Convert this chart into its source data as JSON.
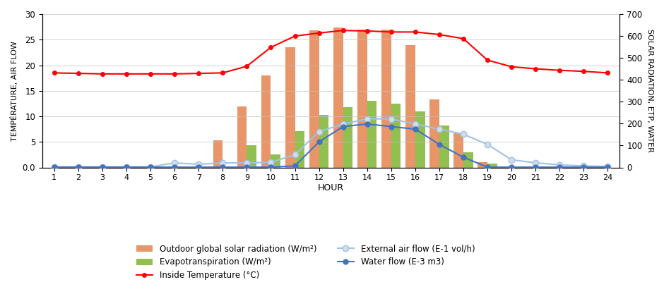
{
  "hours": [
    1,
    2,
    3,
    4,
    5,
    6,
    7,
    8,
    9,
    10,
    11,
    12,
    13,
    14,
    15,
    16,
    17,
    18,
    19,
    20,
    21,
    22,
    23,
    24
  ],
  "solar_radiation": [
    0,
    0,
    0,
    0,
    0,
    0,
    0,
    125,
    280,
    420,
    550,
    625,
    640,
    630,
    630,
    560,
    310,
    155,
    25,
    0,
    0,
    0,
    0,
    0
  ],
  "evapotranspiration": [
    0,
    0,
    0,
    0,
    0,
    0,
    0,
    0,
    100,
    60,
    165,
    240,
    275,
    305,
    290,
    255,
    190,
    70,
    18,
    0,
    0,
    0,
    0,
    0
  ],
  "inside_temp": [
    18.5,
    18.4,
    18.3,
    18.3,
    18.3,
    18.3,
    18.4,
    18.5,
    19.8,
    23.5,
    25.7,
    26.3,
    26.8,
    26.7,
    26.5,
    26.5,
    26.0,
    25.2,
    21.0,
    19.7,
    19.3,
    19.0,
    18.8,
    18.5
  ],
  "external_airflow": [
    0.1,
    0.1,
    0.1,
    0.1,
    0.1,
    0.9,
    0.6,
    0.9,
    0.9,
    1.0,
    2.5,
    7.0,
    8.5,
    9.5,
    9.5,
    8.5,
    7.5,
    6.5,
    4.5,
    1.5,
    0.9,
    0.5,
    0.3,
    0.2
  ],
  "water_flow": [
    0.05,
    0.05,
    0.05,
    0.05,
    0.05,
    0.05,
    0.05,
    0.05,
    0.05,
    0.05,
    0.3,
    5.0,
    8.0,
    8.5,
    8.0,
    7.5,
    4.5,
    2.0,
    0.05,
    0.05,
    0.05,
    0.05,
    0.05,
    0.05
  ],
  "solar_bar_color": "#E8956A",
  "evap_bar_color": "#92C050",
  "temp_line_color": "#FF0000",
  "airflow_line_color": "#9DC3E6",
  "airflow_marker_color": "#D6DCE4",
  "water_line_color": "#4472C4",
  "left_ylim": [
    0,
    30
  ],
  "right_ylim": [
    0,
    700
  ],
  "left_yticks": [
    0.0,
    5.0,
    10.0,
    15.0,
    20.0,
    25.0,
    30.0
  ],
  "right_yticks": [
    0,
    100,
    200,
    300,
    400,
    500,
    600,
    700
  ],
  "left_ylabel": "TEMPÉRATURE, AIR FLOW",
  "right_ylabel": "SOLAR RADIATION, ETP, WATER",
  "xlabel": "HOUR",
  "bg_color": "#FFFFFF",
  "grid_color": "#C0C0C0"
}
